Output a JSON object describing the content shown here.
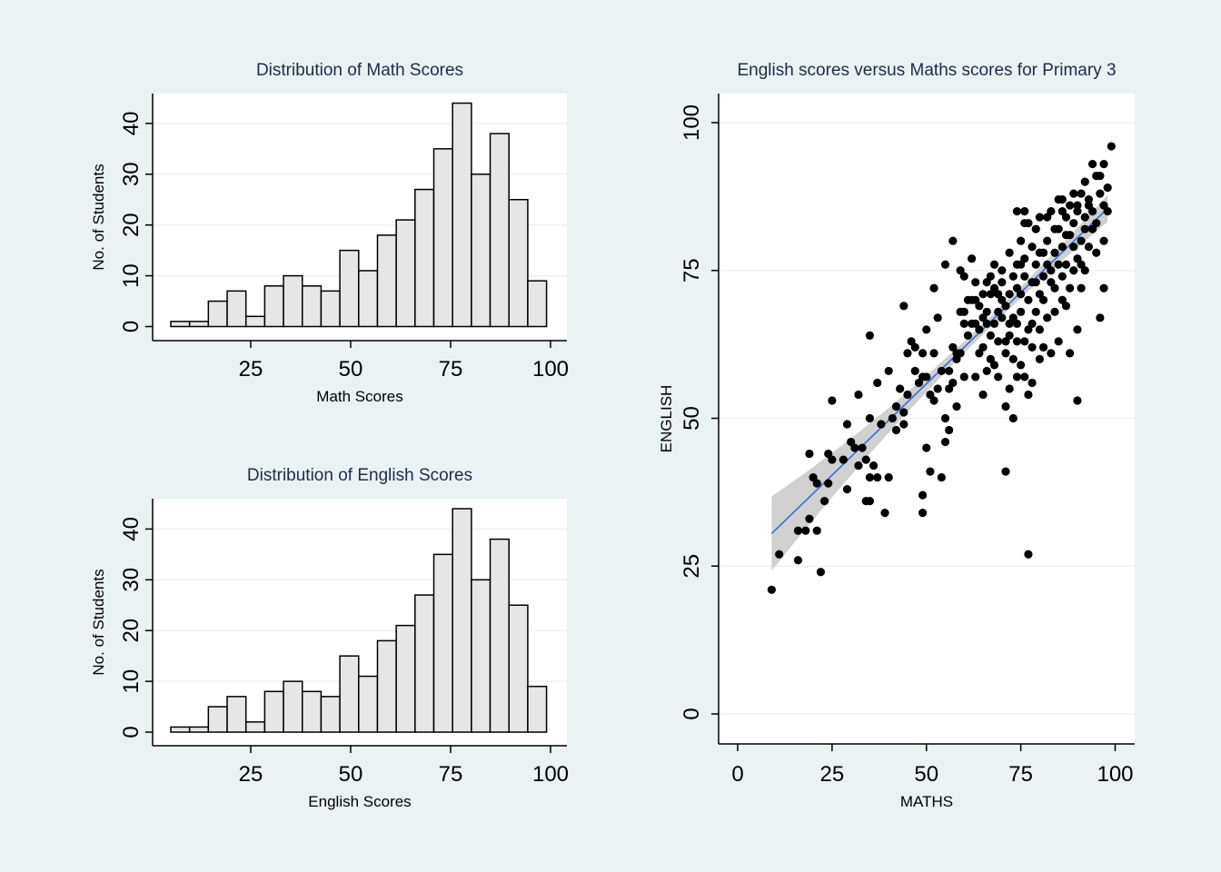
{
  "chart_data": [
    {
      "type": "bar",
      "title": "Distribution of Math Scores",
      "xlabel": "Math Scores",
      "ylabel": "No. of Students",
      "bin_width": 4.7,
      "bin_start": 5,
      "bin_counts": [
        1,
        1,
        5,
        7,
        2,
        8,
        10,
        8,
        7,
        15,
        11,
        18,
        21,
        27,
        35,
        44,
        30,
        38,
        25,
        9
      ],
      "xticks": [
        25,
        50,
        75,
        100
      ],
      "yticks": [
        0,
        10,
        20,
        30,
        40
      ],
      "xlim": [
        0,
        104
      ],
      "ylim": [
        0,
        46
      ],
      "grid": true
    },
    {
      "type": "bar",
      "title": "Distribution of English Scores",
      "xlabel": "English Scores",
      "ylabel": "No. of Students",
      "bin_width": 4.7,
      "bin_start": 5,
      "bin_counts": [
        1,
        1,
        5,
        7,
        2,
        8,
        10,
        8,
        7,
        15,
        11,
        18,
        21,
        27,
        35,
        44,
        30,
        38,
        25,
        9
      ],
      "xticks": [
        25,
        50,
        75,
        100
      ],
      "yticks": [
        0,
        10,
        20,
        30,
        40
      ],
      "xlim": [
        0,
        104
      ],
      "ylim": [
        0,
        46
      ],
      "grid": true
    },
    {
      "type": "scatter",
      "title": "English scores versus Maths scores for Primary 3",
      "xlabel": "MATHS",
      "ylabel": "ENGLISH",
      "xticks": [
        0,
        25,
        50,
        75,
        100
      ],
      "yticks": [
        0,
        25,
        50,
        75,
        100
      ],
      "xlim": [
        -5,
        105
      ],
      "ylim": [
        -5,
        105
      ],
      "grid": true,
      "fit_line": {
        "x": [
          9,
          98
        ],
        "y": [
          30.5,
          85.5
        ],
        "color": "#3b6ad6",
        "ci_color": "#c8c8c8"
      },
      "points": [
        [
          9,
          21
        ],
        [
          11,
          27
        ],
        [
          16,
          26
        ],
        [
          16,
          31
        ],
        [
          18,
          31
        ],
        [
          19,
          33
        ],
        [
          19,
          44
        ],
        [
          20,
          40
        ],
        [
          21,
          31
        ],
        [
          22,
          24
        ],
        [
          21,
          39
        ],
        [
          23,
          36
        ],
        [
          24,
          44
        ],
        [
          24,
          39
        ],
        [
          25,
          43
        ],
        [
          25,
          53
        ],
        [
          29,
          38
        ],
        [
          29,
          49
        ],
        [
          30,
          46
        ],
        [
          31,
          45
        ],
        [
          32,
          42
        ],
        [
          32,
          54
        ],
        [
          34,
          43
        ],
        [
          34,
          36
        ],
        [
          35,
          36
        ],
        [
          35,
          50
        ],
        [
          35,
          40
        ],
        [
          35,
          64
        ],
        [
          36,
          42
        ],
        [
          37,
          56
        ],
        [
          38,
          49
        ],
        [
          39,
          34
        ],
        [
          40,
          40
        ],
        [
          40,
          58
        ],
        [
          41,
          50
        ],
        [
          42,
          52
        ],
        [
          42,
          48
        ],
        [
          43,
          55
        ],
        [
          44,
          49
        ],
        [
          44,
          69
        ],
        [
          45,
          54
        ],
        [
          45,
          61
        ],
        [
          46,
          63
        ],
        [
          47,
          58
        ],
        [
          48,
          56
        ],
        [
          49,
          34
        ],
        [
          49,
          37
        ],
        [
          49,
          57
        ],
        [
          49,
          61
        ],
        [
          50,
          45
        ],
        [
          50,
          57
        ],
        [
          50,
          65
        ],
        [
          51,
          41
        ],
        [
          51,
          54
        ],
        [
          52,
          61
        ],
        [
          52,
          72
        ],
        [
          53,
          55
        ],
        [
          53,
          67
        ],
        [
          54,
          58
        ],
        [
          54,
          40
        ],
        [
          55,
          46
        ],
        [
          55,
          50
        ],
        [
          55,
          76
        ],
        [
          56,
          48
        ],
        [
          56,
          55
        ],
        [
          57,
          56
        ],
        [
          57,
          80
        ],
        [
          57,
          62
        ],
        [
          58,
          60
        ],
        [
          58,
          52
        ],
        [
          59,
          75
        ],
        [
          59,
          61
        ],
        [
          60,
          74
        ],
        [
          60,
          57
        ],
        [
          60,
          68
        ],
        [
          61,
          64
        ],
        [
          62,
          66
        ],
        [
          62,
          77
        ],
        [
          62,
          70
        ],
        [
          63,
          57
        ],
        [
          63,
          73
        ],
        [
          64,
          69
        ],
        [
          64,
          61
        ],
        [
          64,
          65
        ],
        [
          65,
          62
        ],
        [
          65,
          71
        ],
        [
          65,
          54
        ],
        [
          66,
          66
        ],
        [
          66,
          73
        ],
        [
          66,
          58
        ],
        [
          67,
          60
        ],
        [
          67,
          64
        ],
        [
          67,
          71
        ],
        [
          68,
          66
        ],
        [
          68,
          59
        ],
        [
          68,
          76
        ],
        [
          69,
          68
        ],
        [
          69,
          63
        ],
        [
          69,
          57
        ],
        [
          70,
          73
        ],
        [
          70,
          67
        ],
        [
          70,
          75
        ],
        [
          71,
          69
        ],
        [
          71,
          52
        ],
        [
          71,
          41
        ],
        [
          71,
          61
        ],
        [
          72,
          71
        ],
        [
          72,
          64
        ],
        [
          72,
          78
        ],
        [
          72,
          55
        ],
        [
          73,
          74
        ],
        [
          73,
          60
        ],
        [
          73,
          50
        ],
        [
          73,
          67
        ],
        [
          74,
          66
        ],
        [
          74,
          72
        ],
        [
          74,
          85
        ],
        [
          74,
          63
        ],
        [
          74,
          57
        ],
        [
          75,
          80
        ],
        [
          75,
          68
        ],
        [
          75,
          76
        ],
        [
          75,
          71
        ],
        [
          76,
          74
        ],
        [
          76,
          63
        ],
        [
          76,
          57
        ],
        [
          76,
          77
        ],
        [
          77,
          83
        ],
        [
          77,
          27
        ],
        [
          77,
          54
        ],
        [
          77,
          70
        ],
        [
          77,
          65
        ],
        [
          78,
          79
        ],
        [
          78,
          73
        ],
        [
          78,
          56
        ],
        [
          78,
          62
        ],
        [
          79,
          82
        ],
        [
          79,
          68
        ],
        [
          79,
          76
        ],
        [
          80,
          71
        ],
        [
          80,
          65
        ],
        [
          80,
          78
        ],
        [
          80,
          84
        ],
        [
          81,
          74
        ],
        [
          81,
          62
        ],
        [
          81,
          70
        ],
        [
          82,
          76
        ],
        [
          82,
          67
        ],
        [
          82,
          80
        ],
        [
          83,
          73
        ],
        [
          83,
          61
        ],
        [
          83,
          85
        ],
        [
          84,
          78
        ],
        [
          84,
          72
        ],
        [
          84,
          68
        ],
        [
          85,
          82
        ],
        [
          85,
          76
        ],
        [
          85,
          63
        ],
        [
          86,
          79
        ],
        [
          86,
          74
        ],
        [
          86,
          87
        ],
        [
          86,
          70
        ],
        [
          87,
          81
        ],
        [
          87,
          84
        ],
        [
          87,
          76
        ],
        [
          88,
          72
        ],
        [
          88,
          86
        ],
        [
          88,
          61
        ],
        [
          89,
          79
        ],
        [
          89,
          83
        ],
        [
          89,
          88
        ],
        [
          90,
          77
        ],
        [
          90,
          65
        ],
        [
          90,
          53
        ],
        [
          90,
          85
        ],
        [
          91,
          80
        ],
        [
          91,
          88
        ],
        [
          91,
          76
        ],
        [
          92,
          84
        ],
        [
          92,
          82
        ],
        [
          92,
          90
        ],
        [
          93,
          87
        ],
        [
          93,
          79
        ],
        [
          94,
          85
        ],
        [
          94,
          93
        ],
        [
          95,
          78
        ],
        [
          95,
          83
        ],
        [
          96,
          67
        ],
        [
          96,
          88
        ],
        [
          96,
          91
        ],
        [
          97,
          80
        ],
        [
          97,
          72
        ],
        [
          97,
          86
        ],
        [
          98,
          89
        ],
        [
          98,
          85
        ],
        [
          99,
          96
        ],
        [
          97,
          93
        ],
        [
          95,
          91
        ],
        [
          93,
          86
        ],
        [
          88,
          81
        ],
        [
          76,
          83
        ],
        [
          74,
          76
        ],
        [
          70,
          70
        ],
        [
          68,
          72
        ],
        [
          66,
          68
        ],
        [
          63,
          66
        ],
        [
          61,
          70
        ],
        [
          59,
          68
        ],
        [
          58,
          61
        ],
        [
          56,
          58
        ],
        [
          52,
          53
        ],
        [
          47,
          62
        ],
        [
          44,
          51
        ],
        [
          37,
          40
        ],
        [
          33,
          45
        ],
        [
          28,
          43
        ],
        [
          82,
          84
        ],
        [
          84,
          82
        ],
        [
          86,
          85
        ],
        [
          85,
          87
        ],
        [
          79,
          73
        ],
        [
          81,
          78
        ],
        [
          83,
          75
        ],
        [
          78,
          66
        ],
        [
          80,
          60
        ],
        [
          72,
          66
        ],
        [
          75,
          59
        ],
        [
          71,
          63
        ],
        [
          69,
          71
        ],
        [
          67,
          74
        ],
        [
          65,
          67
        ],
        [
          63,
          70
        ],
        [
          60,
          66
        ],
        [
          89,
          75
        ],
        [
          91,
          72
        ],
        [
          87,
          69
        ],
        [
          76,
          85
        ],
        [
          90,
          86
        ],
        [
          92,
          75
        ],
        [
          94,
          82
        ]
      ]
    }
  ]
}
